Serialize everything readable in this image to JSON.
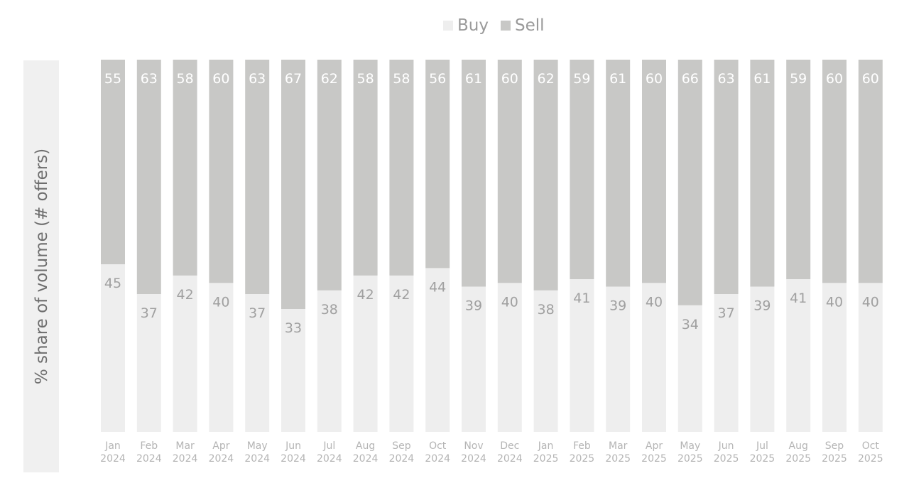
{
  "chart_data": {
    "type": "bar",
    "stacked": true,
    "ylabel": "% share of volume (# offers)",
    "xlabel": "",
    "ylim": [
      0,
      100
    ],
    "legend_position": "top-center",
    "grid": false,
    "categories": [
      [
        "Jan",
        "2024"
      ],
      [
        "Feb",
        "2024"
      ],
      [
        "Mar",
        "2024"
      ],
      [
        "Apr",
        "2024"
      ],
      [
        "May",
        "2024"
      ],
      [
        "Jun",
        "2024"
      ],
      [
        "Jul",
        "2024"
      ],
      [
        "Aug",
        "2024"
      ],
      [
        "Sep",
        "2024"
      ],
      [
        "Oct",
        "2024"
      ],
      [
        "Nov",
        "2024"
      ],
      [
        "Dec",
        "2024"
      ],
      [
        "Jan",
        "2025"
      ],
      [
        "Feb",
        "2025"
      ],
      [
        "Mar",
        "2025"
      ],
      [
        "Apr",
        "2025"
      ],
      [
        "May",
        "2025"
      ],
      [
        "Jun",
        "2025"
      ],
      [
        "Jul",
        "2025"
      ],
      [
        "Aug",
        "2025"
      ],
      [
        "Sep",
        "2025"
      ],
      [
        "Oct",
        "2025"
      ]
    ],
    "series": [
      {
        "name": "Buy",
        "color": "#eeeeee",
        "values": [
          45,
          37,
          42,
          40,
          37,
          33,
          38,
          42,
          42,
          44,
          39,
          40,
          38,
          41,
          39,
          40,
          34,
          37,
          39,
          41,
          40,
          40
        ]
      },
      {
        "name": "Sell",
        "color": "#c8c8c6",
        "values": [
          55,
          63,
          58,
          60,
          63,
          67,
          62,
          58,
          58,
          56,
          61,
          60,
          62,
          59,
          61,
          60,
          66,
          63,
          61,
          59,
          60,
          60
        ]
      }
    ]
  }
}
